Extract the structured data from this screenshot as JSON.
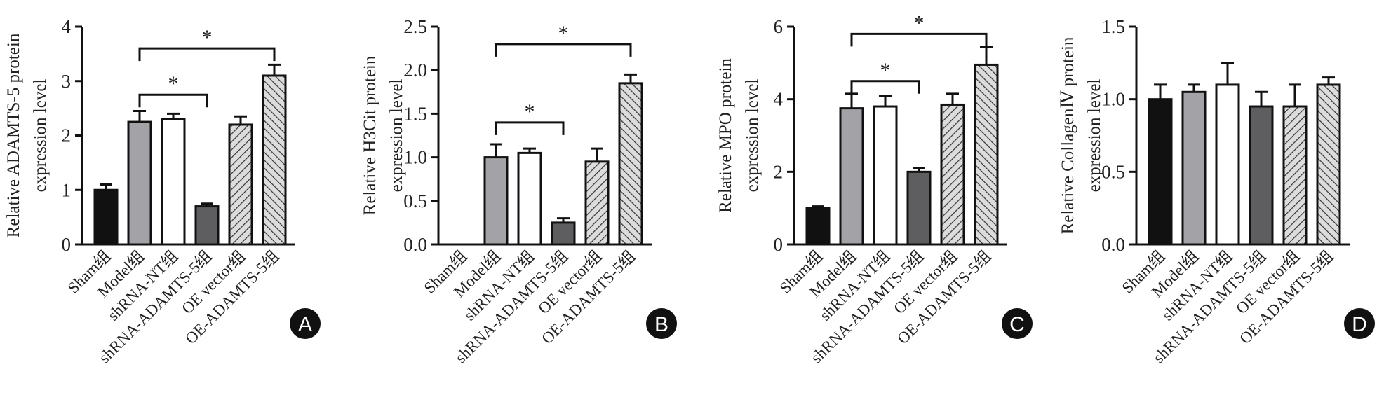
{
  "chart_data": [
    {
      "type": "bar",
      "panel": "A",
      "ylabel": [
        "Relative ADAMTS-5 protein",
        "expression level"
      ],
      "ylim": [
        0,
        4
      ],
      "yticks": [
        "0",
        "1",
        "2",
        "3",
        "4"
      ],
      "categories": [
        "Sham组",
        "Model组",
        "shRNA-NT组",
        "shRNA-ADAMTS-5组",
        "OE vector组",
        "OE-ADAMTS-5组"
      ],
      "values": [
        1.0,
        2.25,
        2.3,
        0.7,
        2.2,
        3.1
      ],
      "errors": [
        0.1,
        0.2,
        0.1,
        0.05,
        0.15,
        0.2
      ],
      "significance": [
        {
          "from": 1,
          "to": 3,
          "level": 2.75,
          "label": "*"
        },
        {
          "from": 1,
          "to": 5,
          "level": 3.6,
          "label": "*"
        }
      ]
    },
    {
      "type": "bar",
      "panel": "B",
      "ylabel": [
        "Relative H3Cit protein",
        "expression level"
      ],
      "ylim": [
        0,
        2.5
      ],
      "yticks": [
        "0.0",
        "0.5",
        "1.0",
        "1.5",
        "2.0",
        "2.5"
      ],
      "categories": [
        "Sham组",
        "Model组",
        "shRNA-NT组",
        "shRNA-ADAMTS-5组",
        "OE vector组",
        "OE-ADAMTS-5组"
      ],
      "values": [
        0,
        1.0,
        1.05,
        0.25,
        0.95,
        1.85
      ],
      "errors": [
        0,
        0.15,
        0.05,
        0.05,
        0.15,
        0.1
      ],
      "significance": [
        {
          "from": 1,
          "to": 3,
          "level": 1.4,
          "label": "*"
        },
        {
          "from": 1,
          "to": 5,
          "level": 2.3,
          "label": "*"
        }
      ]
    },
    {
      "type": "bar",
      "panel": "C",
      "ylabel": [
        "Relative MPO protein",
        "expression level"
      ],
      "ylim": [
        0,
        6
      ],
      "yticks": [
        "0",
        "2",
        "4",
        "6"
      ],
      "categories": [
        "Sham组",
        "Model组",
        "shRNA-NT组",
        "shRNA-ADAMTS-5组",
        "OE vector组",
        "OE-ADAMTS-5组"
      ],
      "values": [
        1.0,
        3.75,
        3.8,
        2.0,
        3.85,
        4.95
      ],
      "errors": [
        0.05,
        0.4,
        0.3,
        0.1,
        0.3,
        0.5
      ],
      "significance": [
        {
          "from": 1,
          "to": 3,
          "level": 4.5,
          "label": "*"
        },
        {
          "from": 1,
          "to": 5,
          "level": 5.8,
          "label": "*"
        }
      ]
    },
    {
      "type": "bar",
      "panel": "D",
      "ylabel": [
        "Relative CollagenⅣ protein",
        "expression level"
      ],
      "ylim": [
        0,
        1.5
      ],
      "yticks": [
        "0.0",
        "0.5",
        "1.0",
        "1.5"
      ],
      "categories": [
        "Sham组",
        "Model组",
        "shRNA-NT组",
        "shRNA-ADAMTS-5组",
        "OE vector组",
        "OE-ADAMTS-5组"
      ],
      "values": [
        1.0,
        1.05,
        1.1,
        0.95,
        0.95,
        1.1
      ],
      "errors": [
        0.1,
        0.05,
        0.15,
        0.1,
        0.15,
        0.05
      ],
      "significance": []
    }
  ],
  "colors": {
    "sham": "#111111",
    "model": "#a3a3a7",
    "nt": "#ffffff",
    "sh": "#5e5e60",
    "hatch_bg": "#d8d8d8",
    "line": "#111111"
  }
}
